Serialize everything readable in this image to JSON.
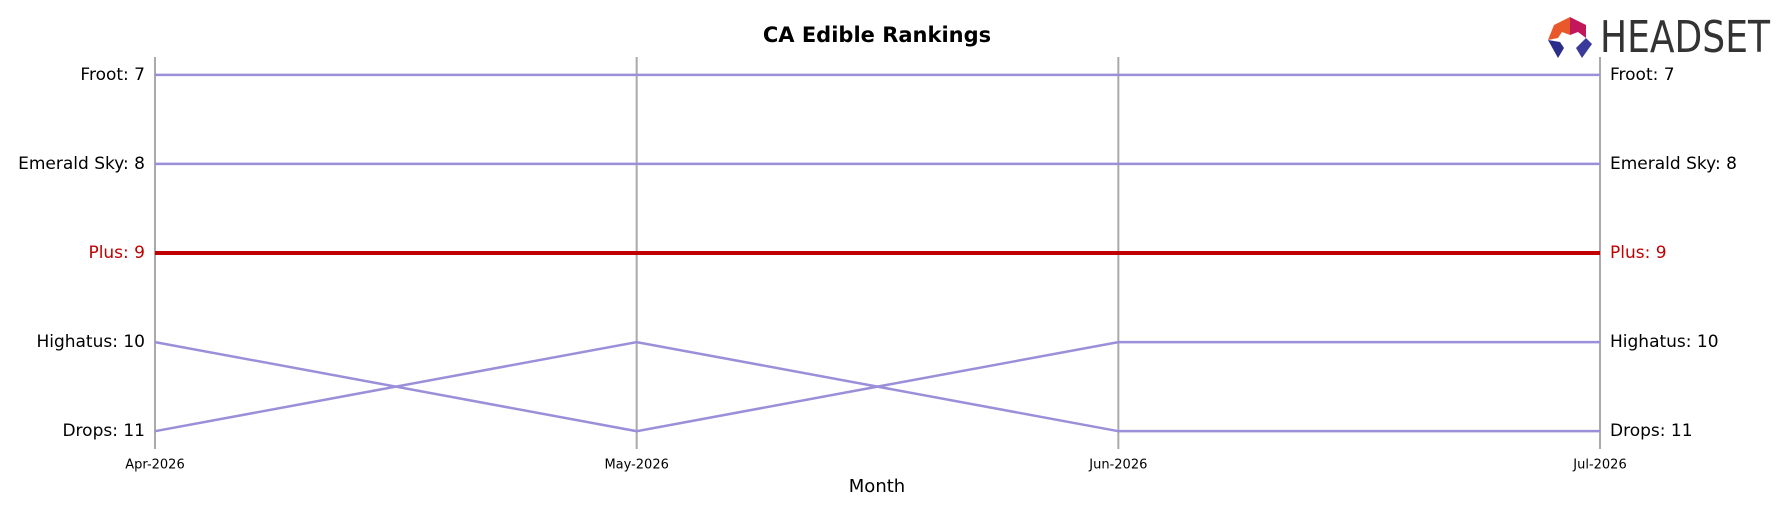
{
  "chart_data": {
    "type": "bump",
    "title": "CA Edible Rankings",
    "x_label": "Month",
    "logo": "HEADSET",
    "categories": [
      "Apr-2026",
      "May-2026",
      "Jun-2026",
      "Jul-2026"
    ],
    "ylim": [
      11.2,
      6.8
    ],
    "series": [
      {
        "color": "#9b8fd9",
        "values": [
          7,
          7,
          7,
          7
        ],
        "value_labels": [
          "Froot: 7",
          null,
          null,
          "Froot: 7"
        ]
      },
      {
        "color": "#9b8fd9",
        "values": [
          8,
          8,
          8,
          8
        ],
        "value_labels": [
          "Emerald Sky: 8",
          null,
          null,
          "Emerald Sky: 8"
        ]
      },
      {
        "color": "#c00000",
        "values": [
          9,
          9,
          9,
          9
        ],
        "value_labels": [
          "Plus: 9",
          null,
          null,
          "Plus: 9"
        ]
      },
      {
        "color": "#9b8fd9",
        "values": [
          10,
          11,
          10,
          10
        ],
        "value_labels": [
          "Highatus: 10",
          null,
          null,
          "Highatus: 10"
        ]
      },
      {
        "color": "#9b8fd9",
        "values": [
          11,
          10,
          11,
          11
        ],
        "value_labels": [
          "Drops: 11",
          null,
          null,
          "Drops: 11"
        ]
      }
    ]
  }
}
